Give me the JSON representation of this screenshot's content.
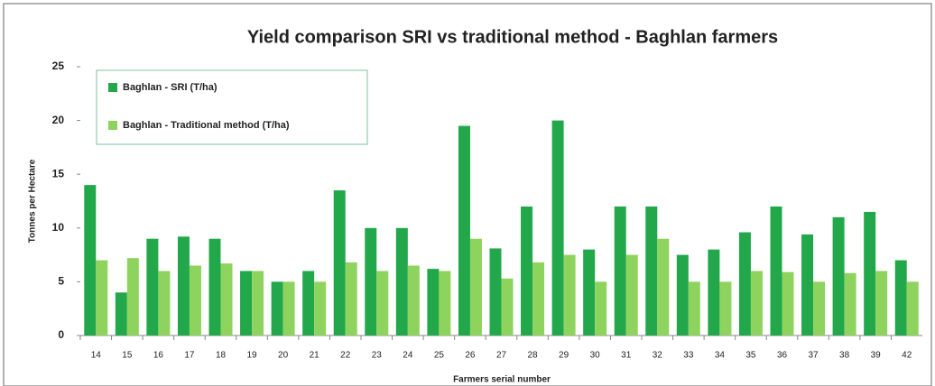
{
  "chart_data": {
    "type": "bar",
    "title": "Yield comparison SRI vs traditional method - Baghlan farmers",
    "y_label": "Tonnes per Hectare",
    "x_label": "Farmers serial number",
    "categories": [
      "14",
      "15",
      "16",
      "17",
      "18",
      "19",
      "20",
      "21",
      "22",
      "23",
      "24",
      "25",
      "26",
      "27",
      "28",
      "29",
      "30",
      "31",
      "32",
      "33",
      "34",
      "35",
      "36",
      "37",
      "38",
      "39",
      "42"
    ],
    "series": [
      {
        "name": "Baghlan - SRI (T/ha)",
        "color": "#22a84a",
        "values": [
          14,
          4,
          9,
          9.2,
          9,
          6,
          5,
          6,
          13.5,
          10,
          10,
          6.2,
          19.5,
          8.1,
          12,
          20,
          8,
          12,
          12,
          7.5,
          8,
          9.6,
          12,
          9.4,
          11,
          11.5,
          7
        ]
      },
      {
        "name": "Baghlan - Traditional  method (T/ha)",
        "color": "#8fd35f",
        "values": [
          7,
          7.2,
          6,
          6.5,
          6.7,
          6,
          5,
          5,
          6.8,
          6,
          6.5,
          6,
          9,
          5.3,
          6.8,
          7.5,
          5,
          7.5,
          9,
          5,
          5,
          6,
          5.9,
          5,
          5.8,
          6,
          5
        ]
      }
    ],
    "ylim": [
      0,
      25
    ],
    "yticks": [
      0,
      5,
      10,
      15,
      20,
      25
    ],
    "grid": false,
    "legend": "upper left"
  }
}
